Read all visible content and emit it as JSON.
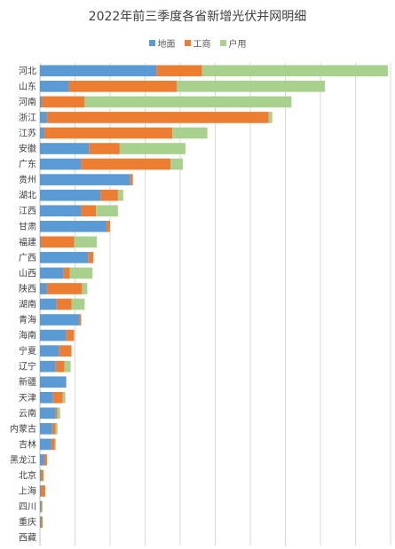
{
  "chart_data": {
    "type": "bar",
    "orientation": "horizontal",
    "stacked": true,
    "title": "2022年前三季度各省新增光伏并网明细",
    "xlabel": "",
    "ylabel": "",
    "legend_position": "top",
    "grid": true,
    "xlim": [
      0,
      2000
    ],
    "x_gridlines": [
      0,
      200,
      400,
      600,
      800,
      1000,
      1200,
      1400,
      1600,
      1800,
      2000
    ],
    "categories": [
      "河北",
      "山东",
      "河南",
      "浙江",
      "江苏",
      "安徽",
      "广东",
      "贵州",
      "湖北",
      "江西",
      "甘肃",
      "福建",
      "广西",
      "山西",
      "陕西",
      "湖南",
      "青海",
      "海南",
      "宁夏",
      "辽宁",
      "新疆",
      "天津",
      "云南",
      "内蒙古",
      "吉林",
      "黑龙江",
      "北京",
      "上海",
      "四川",
      "重庆",
      "西藏"
    ],
    "series": [
      {
        "name": "地面",
        "color": "#5b9bd5",
        "values": [
          665,
          165,
          10,
          40,
          25,
          280,
          235,
          515,
          345,
          235,
          380,
          5,
          275,
          135,
          40,
          95,
          225,
          150,
          110,
          90,
          150,
          75,
          90,
          70,
          65,
          25,
          5,
          5,
          5,
          5,
          0
        ]
      },
      {
        "name": "工商",
        "color": "#ed7d31",
        "values": [
          260,
          615,
          245,
          1265,
          730,
          175,
          510,
          15,
          100,
          85,
          20,
          190,
          30,
          35,
          200,
          85,
          10,
          45,
          70,
          50,
          0,
          55,
          10,
          20,
          20,
          15,
          15,
          25,
          5,
          10,
          0
        ]
      },
      {
        "name": "户用",
        "color": "#a9d18e",
        "values": [
          1060,
          845,
          1180,
          20,
          200,
          375,
          70,
          0,
          30,
          125,
          0,
          130,
          0,
          130,
          30,
          75,
          0,
          0,
          0,
          35,
          0,
          15,
          15,
          10,
          5,
          0,
          0,
          0,
          5,
          0,
          0
        ]
      }
    ]
  }
}
